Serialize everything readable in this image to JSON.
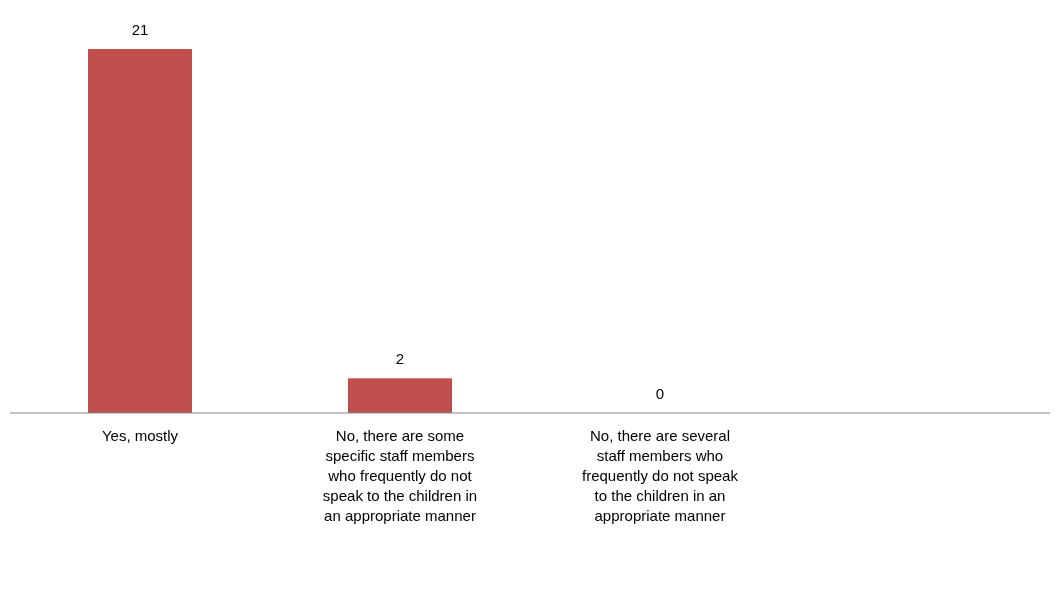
{
  "chart_data": {
    "type": "bar",
    "categories": [
      "Yes, mostly",
      "No, there are some specific staff members who frequently do not speak to the children in an appropriate manner",
      "No, there are several staff members who frequently do not speak to the children in an appropriate manner",
      null
    ],
    "values": [
      21,
      2,
      0,
      null
    ],
    "color": "#c0504d",
    "data_labels": true
  }
}
